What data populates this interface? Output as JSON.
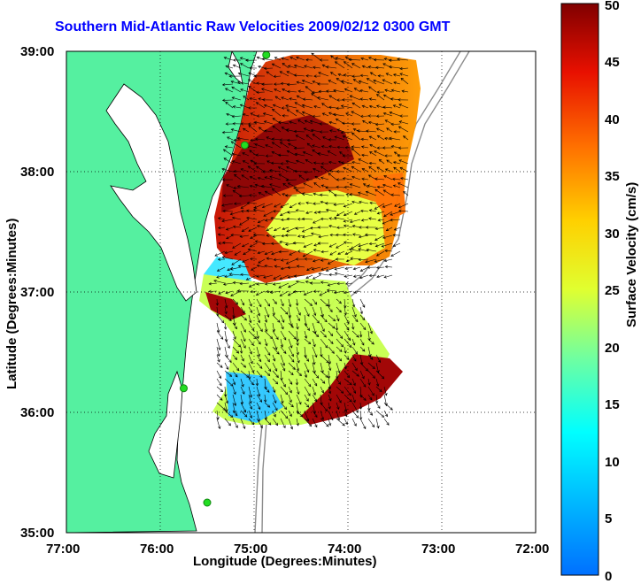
{
  "title": "Southern Mid-Atlantic Raw Velocities 2009/02/12 0300 GMT",
  "x_axis": {
    "label": "Longitude (Degrees:Minutes)",
    "ticks": [
      "77:00",
      "76:00",
      "75:00",
      "74:00",
      "73:00",
      "72:00"
    ]
  },
  "y_axis": {
    "label": "Latitude (Degrees:Minutes)",
    "ticks": [
      "39:00",
      "38:00",
      "37:00",
      "36:00",
      "35:00"
    ]
  },
  "colorbar": {
    "label": "Surface Velocity (cm/s)",
    "ticks": [
      "50",
      "45",
      "40",
      "35",
      "30",
      "25",
      "20",
      "15",
      "10",
      "5",
      "0"
    ],
    "min": 0,
    "max": 50,
    "colormap": "jet"
  },
  "colors": {
    "land": "#55f0a0",
    "title": "#0000ff",
    "coast_line": "#000000",
    "bathymetry": "#8c8c8c",
    "station": "#22dd22"
  },
  "map_extent": {
    "lon_min": -77,
    "lon_max": -72,
    "lat_min": 35,
    "lat_max": 39
  },
  "grid": "dotted",
  "stations": [
    {
      "lon": -74.87,
      "lat": 38.97
    },
    {
      "lon": -75.1,
      "lat": 38.22
    },
    {
      "lon": -75.75,
      "lat": 36.2
    },
    {
      "lon": -75.5,
      "lat": 35.25
    }
  ]
}
